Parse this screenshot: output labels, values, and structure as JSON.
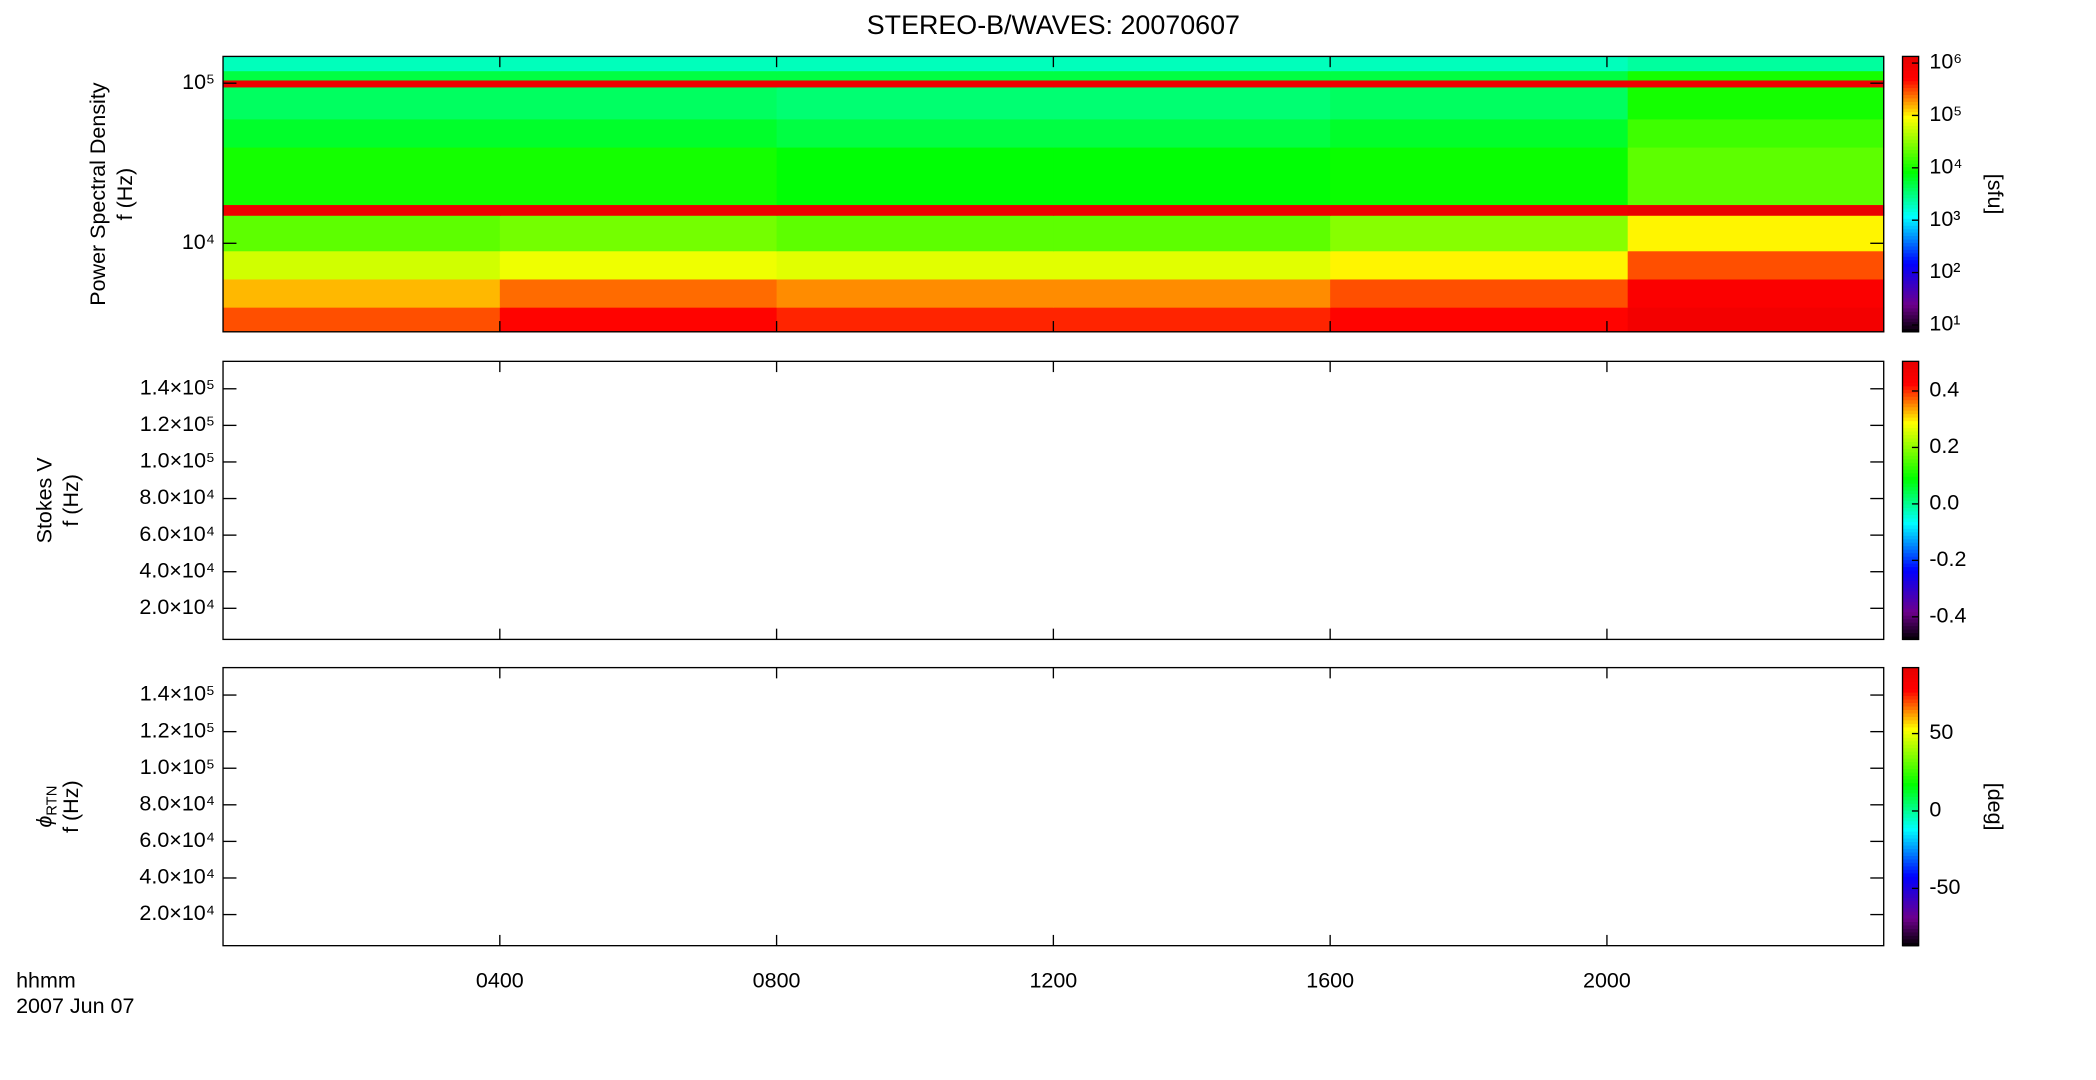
{
  "chart_data": {
    "type": "heatmap",
    "title": "STEREO-B/WAVES: 20070607",
    "xlabel": [
      "hhmm",
      "2007 Jun 07"
    ],
    "xlim": [
      0,
      24
    ],
    "xticks": [
      {
        "value": 4,
        "label": "0400"
      },
      {
        "value": 8,
        "label": "0800"
      },
      {
        "value": 12,
        "label": "1200"
      },
      {
        "value": 16,
        "label": "1600"
      },
      {
        "value": 20,
        "label": "2000"
      }
    ],
    "panels": [
      {
        "ylabel": [
          "Power Spectral Density",
          "f (Hz)"
        ],
        "yscale": "log",
        "ylim": [
          2800,
          147000
        ],
        "yticks": [
          {
            "value": 10000,
            "label": "10⁴"
          },
          {
            "value": 100000,
            "label": "10⁵"
          }
        ],
        "colormap": "rainbow",
        "colorbar": {
          "scale": "log",
          "lim": [
            7.4,
            1340000
          ],
          "label": "[sfu]",
          "ticks": [
            {
              "value": 10,
              "label": "10¹"
            },
            {
              "value": 100,
              "label": "10²"
            },
            {
              "value": 1000,
              "label": "10³"
            },
            {
              "value": 10000,
              "label": "10⁴"
            },
            {
              "value": 100000,
              "label": "10⁵"
            },
            {
              "value": 1000000,
              "label": "10⁶"
            }
          ]
        },
        "x_edges": [
          0,
          4,
          8,
          12,
          16,
          20.3,
          24
        ],
        "y_edges": [
          2800,
          4000,
          6000,
          9000,
          15000,
          17500,
          40000,
          60000,
          95000,
          105000,
          120000,
          147000
        ],
        "z": [
          [
            300000,
            500000,
            400000,
            400000,
            500000,
            800000
          ],
          [
            150000,
            250000,
            200000,
            200000,
            300000,
            600000
          ],
          [
            60000,
            80000,
            70000,
            70000,
            100000,
            300000
          ],
          [
            20000,
            25000,
            20000,
            20000,
            30000,
            100000
          ],
          [
            1000000,
            1000000,
            1000000,
            1000000,
            1000000,
            1200000
          ],
          [
            10000,
            10000,
            8000,
            8000,
            9000,
            20000
          ],
          [
            6000,
            6000,
            5000,
            5000,
            6000,
            15000
          ],
          [
            4000,
            4000,
            3500,
            3500,
            4000,
            10000
          ],
          [
            1000000,
            1000000,
            1000000,
            1000000,
            1000000,
            1000000
          ],
          [
            5000,
            5000,
            5000,
            5000,
            5000,
            10000
          ],
          [
            2000,
            2000,
            2000,
            2000,
            2000,
            2500
          ]
        ]
      },
      {
        "ylabel": [
          "Stokes V",
          "f (Hz)"
        ],
        "yscale": "linear",
        "ylim": [
          3000,
          155000
        ],
        "yticks": [
          {
            "value": 20000,
            "label": "2.0×10⁴"
          },
          {
            "value": 40000,
            "label": "4.0×10⁴"
          },
          {
            "value": 60000,
            "label": "6.0×10⁴"
          },
          {
            "value": 80000,
            "label": "8.0×10⁴"
          },
          {
            "value": 100000,
            "label": "1.0×10⁵"
          },
          {
            "value": 120000,
            "label": "1.2×10⁵"
          },
          {
            "value": 140000,
            "label": "1.4×10⁵"
          }
        ],
        "colormap": "rainbow",
        "colorbar": {
          "scale": "linear",
          "lim": [
            -0.48,
            0.505
          ],
          "ticks": [
            {
              "value": -0.4,
              "label": "-0.4"
            },
            {
              "value": -0.2,
              "label": "-0.2"
            },
            {
              "value": 0,
              "label": "0.0"
            },
            0.2,
            0.4
          ]
        }
      },
      {
        "ylabel_symbol": "ϕ",
        "ylabel_subscript": "RTN",
        "ylabel": [
          "f (Hz)"
        ],
        "yscale": "linear",
        "ylim": [
          3000,
          155000
        ],
        "yticks": [
          {
            "value": 20000,
            "label": "2.0×10⁴"
          },
          {
            "value": 40000,
            "label": "4.0×10⁴"
          },
          {
            "value": 60000,
            "label": "6.0×10⁴"
          },
          {
            "value": 80000,
            "label": "8.0×10⁴"
          },
          {
            "value": 100000,
            "label": "1.0×10⁵"
          },
          {
            "value": 120000,
            "label": "1.2×10⁵"
          },
          {
            "value": 140000,
            "label": "1.4×10⁵"
          }
        ],
        "colormap": "rainbow",
        "colorbar": {
          "scale": "linear",
          "lim": [
            -87,
            92.6
          ],
          "label": "[deg]",
          "ticks": [
            -50,
            0,
            50
          ]
        }
      }
    ]
  }
}
